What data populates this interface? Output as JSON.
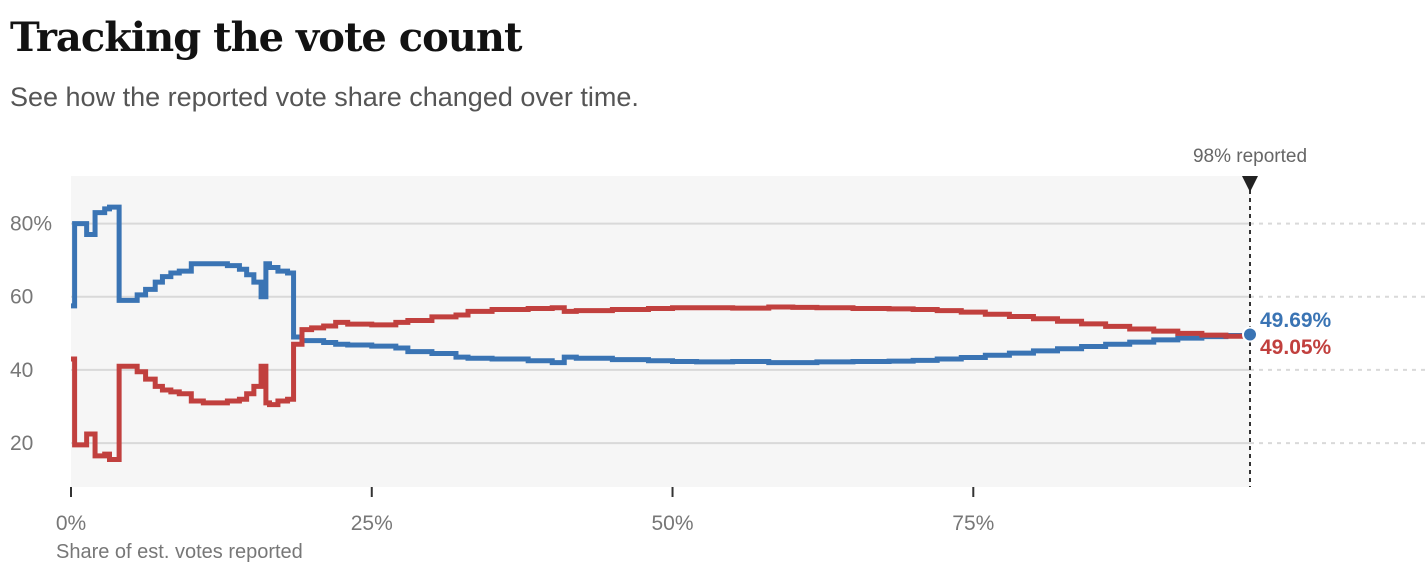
{
  "title": "Tracking the vote count",
  "subtitle": "See how the reported vote share changed over time.",
  "chart_data": {
    "type": "line",
    "xlabel": "Share of est. votes reported",
    "ylabel": "",
    "xlim": [
      0,
      98
    ],
    "ylim": [
      8,
      93
    ],
    "x_ticks": [
      0,
      25,
      50,
      75
    ],
    "x_tick_labels": [
      "0%",
      "25%",
      "50%",
      "75%"
    ],
    "y_ticks": [
      20,
      40,
      60,
      80
    ],
    "y_tick_labels": [
      "20",
      "40",
      "60",
      "80%"
    ],
    "grid": true,
    "step": true,
    "marker": {
      "x": 98,
      "label": "98% reported"
    },
    "series": [
      {
        "color": "#3a74b4",
        "x": [
          0,
          0.3,
          1.3,
          2.0,
          2.8,
          3.2,
          4.0,
          4.7,
          5.5,
          6.2,
          7.0,
          7.6,
          8.3,
          9.0,
          10.0,
          11.0,
          13.0,
          14.0,
          14.6,
          15.2,
          15.8,
          16.2,
          16.5,
          17.2,
          18.0,
          18.5,
          19.2,
          20.0,
          21.0,
          22.0,
          23.0,
          25.0,
          27.0,
          28.0,
          30.0,
          32.0,
          33.0,
          35.0,
          38.0,
          40.0,
          41.0,
          42.0,
          45.0,
          48.0,
          50.0,
          52.0,
          55.0,
          58.0,
          60.0,
          62.0,
          65.0,
          68.0,
          70.0,
          72.0,
          74.0,
          76.0,
          78.0,
          80.0,
          82.0,
          84.0,
          86.0,
          88.0,
          90.0,
          92.0,
          94.0,
          96.0,
          98.0
        ],
        "y": [
          57.5,
          80,
          77,
          83,
          84,
          84.5,
          59,
          59,
          60.5,
          62,
          64,
          65.5,
          66.5,
          67,
          69,
          69,
          68.5,
          67.5,
          66,
          64,
          60,
          69,
          68,
          67,
          66.5,
          49,
          48,
          48,
          47.5,
          47,
          46.8,
          46.5,
          46,
          45,
          44.5,
          43.5,
          43.2,
          43,
          42.5,
          42,
          43.5,
          43.2,
          42.8,
          42.5,
          42.3,
          42.2,
          42.3,
          42,
          42,
          42.2,
          42.3,
          42.4,
          42.6,
          43,
          43.4,
          44,
          44.6,
          45.2,
          45.8,
          46.4,
          47,
          47.6,
          48.2,
          48.7,
          49.1,
          49.4,
          49.69
        ]
      },
      {
        "color": "#c1403e",
        "x": [
          0,
          0.3,
          1.3,
          2.0,
          2.8,
          3.2,
          4.0,
          5.5,
          6.2,
          7.0,
          7.6,
          8.3,
          9.0,
          10.0,
          11.0,
          13.0,
          14.0,
          14.6,
          15.2,
          15.8,
          16.2,
          16.5,
          17.2,
          18.0,
          18.5,
          19.2,
          20.0,
          21.0,
          22.0,
          23.0,
          25.0,
          27.0,
          28.0,
          30.0,
          32.0,
          33.0,
          35.0,
          38.0,
          40.0,
          41.0,
          42.0,
          45.0,
          48.0,
          50.0,
          52.0,
          55.0,
          58.0,
          60.0,
          62.0,
          65.0,
          68.0,
          70.0,
          72.0,
          74.0,
          76.0,
          78.0,
          80.0,
          82.0,
          84.0,
          86.0,
          88.0,
          90.0,
          92.0,
          94.0,
          96.0,
          98.0
        ],
        "y": [
          43,
          19.5,
          22.5,
          16.5,
          17,
          15.5,
          41,
          39.5,
          37.5,
          35.5,
          34.5,
          34,
          33.5,
          31.5,
          31,
          31.5,
          32,
          33.5,
          35.5,
          41,
          31,
          30.5,
          31.5,
          32,
          47,
          51,
          51.5,
          52,
          53,
          52.5,
          52.3,
          53,
          53.5,
          54.5,
          55,
          56,
          56.5,
          56.8,
          57,
          56,
          56.2,
          56.5,
          56.8,
          57,
          57,
          56.9,
          57.2,
          57.1,
          57,
          56.8,
          56.7,
          56.5,
          56.2,
          55.8,
          55.2,
          54.6,
          54,
          53.3,
          52.6,
          51.9,
          51.2,
          50.6,
          50.0,
          49.5,
          49.2,
          49.05
        ]
      }
    ],
    "end_labels": [
      {
        "text": "49.69%",
        "color": "#3a74b4"
      },
      {
        "text": "49.05%",
        "color": "#c1403e"
      }
    ]
  }
}
